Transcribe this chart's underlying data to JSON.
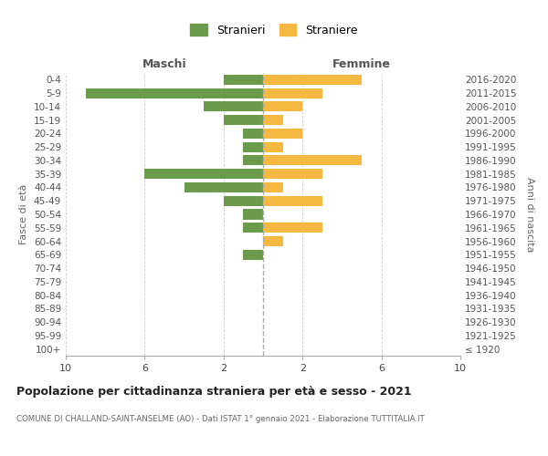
{
  "age_groups": [
    "100+",
    "95-99",
    "90-94",
    "85-89",
    "80-84",
    "75-79",
    "70-74",
    "65-69",
    "60-64",
    "55-59",
    "50-54",
    "45-49",
    "40-44",
    "35-39",
    "30-34",
    "25-29",
    "20-24",
    "15-19",
    "10-14",
    "5-9",
    "0-4"
  ],
  "birth_years": [
    "≤ 1920",
    "1921-1925",
    "1926-1930",
    "1931-1935",
    "1936-1940",
    "1941-1945",
    "1946-1950",
    "1951-1955",
    "1956-1960",
    "1961-1965",
    "1966-1970",
    "1971-1975",
    "1976-1980",
    "1981-1985",
    "1986-1990",
    "1991-1995",
    "1996-2000",
    "2001-2005",
    "2006-2010",
    "2011-2015",
    "2016-2020"
  ],
  "males": [
    0,
    0,
    0,
    0,
    0,
    0,
    0,
    1,
    0,
    1,
    1,
    2,
    4,
    6,
    1,
    1,
    1,
    2,
    3,
    9,
    2
  ],
  "females": [
    0,
    0,
    0,
    0,
    0,
    0,
    0,
    0,
    1,
    3,
    0,
    3,
    1,
    3,
    5,
    1,
    2,
    1,
    2,
    3,
    5
  ],
  "male_color": "#6a9a4a",
  "female_color": "#f5b942",
  "background_color": "#ffffff",
  "grid_color": "#d0d0d0",
  "title": "Popolazione per cittadinanza straniera per età e sesso - 2021",
  "subtitle": "COMUNE DI CHALLAND-SAINT-ANSELME (AO) - Dati ISTAT 1° gennaio 2021 - Elaborazione TUTTITALIA.IT",
  "legend_male": "Stranieri",
  "legend_female": "Straniere",
  "label_left": "Maschi",
  "label_right": "Femmine",
  "ylabel_left": "Fasce di età",
  "ylabel_right": "Anni di nascita",
  "xlim": 10,
  "xticks": [
    -10,
    -6,
    -2,
    2,
    6,
    10
  ],
  "xtick_labels": [
    "10",
    "6",
    "2",
    "2",
    "6",
    "10"
  ]
}
